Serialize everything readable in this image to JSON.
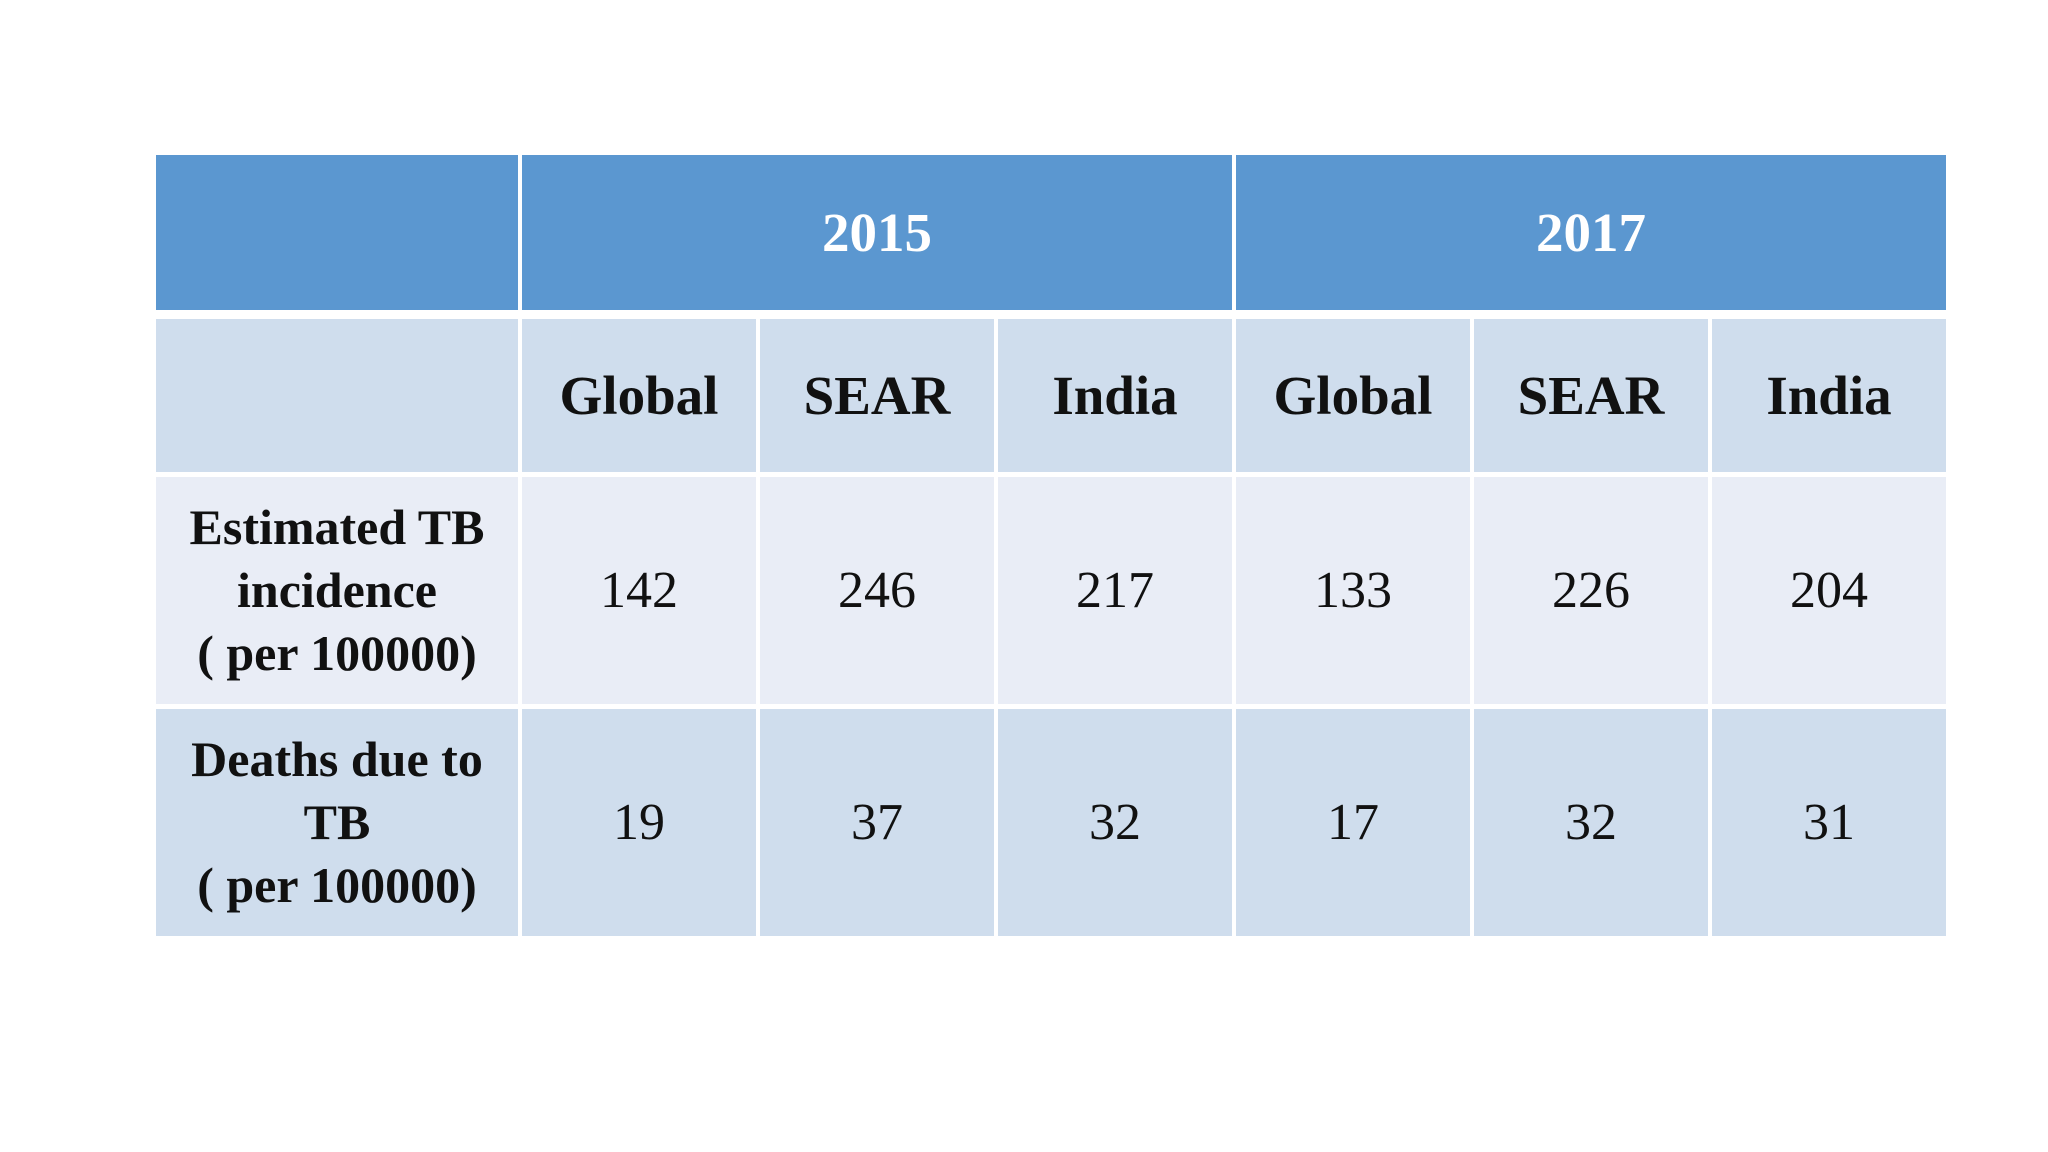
{
  "table": {
    "year_headers": [
      "2015",
      "2017"
    ],
    "column_headers": [
      "Global",
      "SEAR",
      "India",
      "Global",
      "SEAR",
      "India"
    ],
    "rows": [
      {
        "label": "Estimated TB\nincidence\n( per 100000)",
        "values": [
          "142",
          "246",
          "217",
          "133",
          "226",
          "204"
        ]
      },
      {
        "label": "Deaths due to\nTB\n( per 100000)",
        "values": [
          "19",
          "37",
          "32",
          "17",
          "32",
          "31"
        ]
      }
    ],
    "colors": {
      "header_blue": "#5B97D0",
      "band_light": "#E9EDF6",
      "band_medium": "#CFDDED",
      "header_text": "#FFFFFF",
      "body_text": "#111111",
      "gridline": "#FFFFFF"
    }
  },
  "chart_data": {
    "type": "table",
    "column_groups": [
      "2015",
      "2017"
    ],
    "columns": [
      "Global 2015",
      "SEAR 2015",
      "India 2015",
      "Global 2017",
      "SEAR 2017",
      "India 2017"
    ],
    "rows": [
      {
        "label": "Estimated TB incidence ( per 100000)",
        "values": [
          142,
          246,
          217,
          133,
          226,
          204
        ]
      },
      {
        "label": "Deaths due to TB ( per 100000)",
        "values": [
          19,
          37,
          32,
          17,
          32,
          31
        ]
      }
    ]
  }
}
